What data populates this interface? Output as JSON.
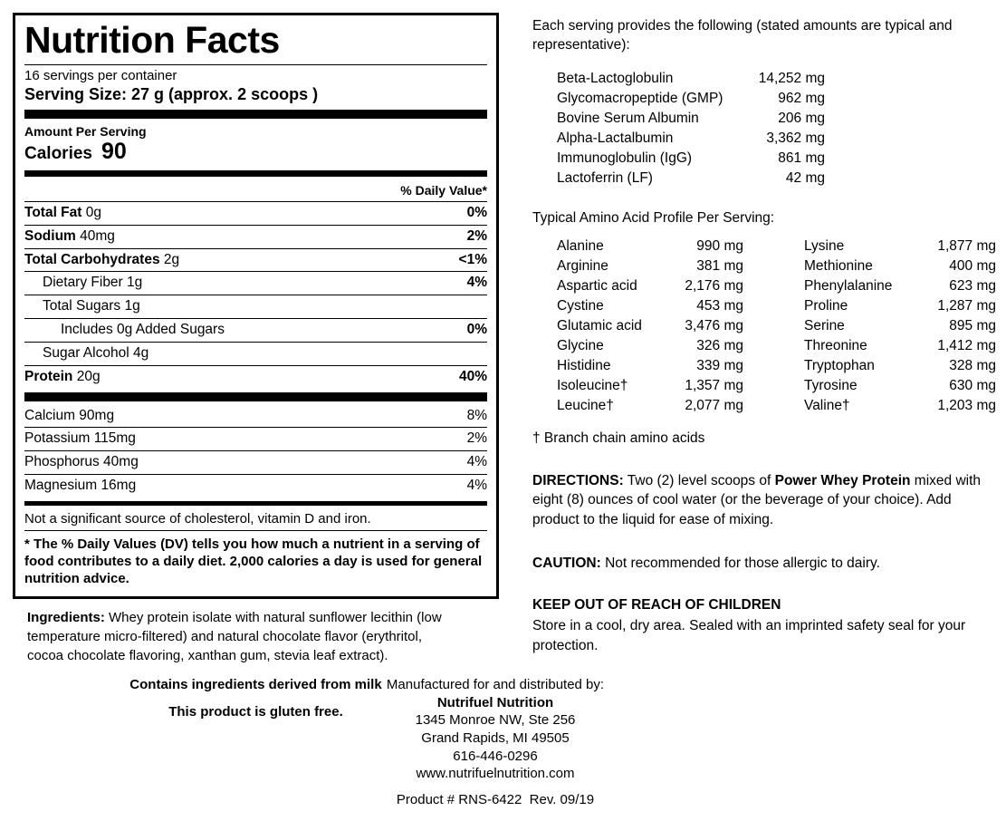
{
  "nutrition_panel": {
    "title": "Nutrition Facts",
    "servings_per_container": "16 servings per container",
    "serving_size": "Serving Size: 27 g (approx. 2 scoops )",
    "amount_per_serving": "Amount Per Serving",
    "calories_label": "Calories",
    "calories_value": "90",
    "daily_value_header": "% Daily Value*",
    "rows": [
      {
        "name": "Total Fat",
        "amount": "0g",
        "dv": "0%"
      },
      {
        "name": "Sodium",
        "amount": "40mg",
        "dv": "2%"
      },
      {
        "name": "Total Carbohydrates",
        "amount": "2g",
        "dv": "<1%"
      },
      {
        "name": "Dietary Fiber",
        "amount": "1g",
        "dv": "4%"
      },
      {
        "name": "Total Sugars",
        "amount": "1g",
        "dv": ""
      },
      {
        "name": "Includes 0g Added Sugars",
        "amount": "",
        "dv": "0%"
      },
      {
        "name": "Sugar Alcohol",
        "amount": "4g",
        "dv": ""
      },
      {
        "name": "Protein",
        "amount": "20g",
        "dv": "40%"
      },
      {
        "name": "Calcium",
        "amount": "90mg",
        "dv": "8%"
      },
      {
        "name": "Potassium",
        "amount": "115mg",
        "dv": "2%"
      },
      {
        "name": "Phosphorus",
        "amount": "40mg",
        "dv": "4%"
      },
      {
        "name": "Magnesium",
        "amount": "16mg",
        "dv": "4%"
      }
    ],
    "not_significant": "Not a significant source of cholesterol, vitamin D and iron.",
    "footnote": "* The % Daily Values (DV) tells you how much a nutrient in a serving of food contributes to a daily diet. 2,000 calories a day is used for general nutrition advice."
  },
  "ingredients": {
    "label": "Ingredients:",
    "text": " Whey protein isolate with natural sunflower lecithin (low temperature micro-filtered) and natural chocolate flavor (erythritol, cocoa chocolate flavoring, xanthan gum, stevia leaf extract).",
    "milk_note": "Contains ingredients derived from milk",
    "gluten_note": "This product is gluten free."
  },
  "serving_provides": {
    "intro": "Each serving provides the following (stated amounts are typical and representative):",
    "items": [
      {
        "name": "Beta-Lactoglobulin",
        "value": "14,252 mg"
      },
      {
        "name": "Glycomacropeptide (GMP)",
        "value": "962 mg"
      },
      {
        "name": "Bovine Serum Albumin",
        "value": "206 mg"
      },
      {
        "name": "Alpha-Lactalbumin",
        "value": "3,362 mg"
      },
      {
        "name": "Immunoglobulin (IgG)",
        "value": "861 mg"
      },
      {
        "name": "Lactoferrin (LF)",
        "value": "42 mg"
      }
    ]
  },
  "amino_profile": {
    "title": "Typical Amino Acid Profile Per Serving:",
    "left": [
      {
        "name": "Alanine",
        "value": "990 mg"
      },
      {
        "name": "Arginine",
        "value": "381 mg"
      },
      {
        "name": "Aspartic acid",
        "value": "2,176 mg"
      },
      {
        "name": "Cystine",
        "value": "453 mg"
      },
      {
        "name": "Glutamic acid",
        "value": "3,476 mg"
      },
      {
        "name": "Glycine",
        "value": "326 mg"
      },
      {
        "name": "Histidine",
        "value": "339 mg"
      },
      {
        "name": "Isoleucine†",
        "value": "1,357 mg"
      },
      {
        "name": "Leucine†",
        "value": "2,077 mg"
      }
    ],
    "right": [
      {
        "name": "Lysine",
        "value": "1,877 mg"
      },
      {
        "name": "Methionine",
        "value": "400 mg"
      },
      {
        "name": "Phenylalanine",
        "value": "623 mg"
      },
      {
        "name": "Proline",
        "value": "1,287 mg"
      },
      {
        "name": "Serine",
        "value": "895 mg"
      },
      {
        "name": "Threonine",
        "value": "1,412 mg"
      },
      {
        "name": "Tryptophan",
        "value": "328 mg"
      },
      {
        "name": "Tyrosine",
        "value": "630 mg"
      },
      {
        "name": "Valine†",
        "value": "1,203 mg"
      }
    ],
    "footnote": "† Branch chain amino acids"
  },
  "directions": {
    "label": "DIRECTIONS:",
    "part1": " Two (2) level scoops of ",
    "bold": "Power Whey Protein",
    "part2": " mixed with eight (8) ounces of cool water (or the beverage of your choice). Add product to the liquid for ease of mixing."
  },
  "caution": {
    "label": "CAUTION:",
    "text": " Not recommended for those allergic to dairy."
  },
  "keep_out": {
    "title": "KEEP OUT OF REACH OF CHILDREN",
    "text": "Store in a cool, dry area. Sealed with an imprinted safety seal for your protection."
  },
  "distributor": {
    "intro": "Manufactured for and distributed by:",
    "name": "Nutrifuel Nutrition",
    "address1": "1345 Monroe NW, Ste 256",
    "address2": "Grand Rapids, MI 49505",
    "phone": "616-446-0296",
    "website": "www.nutrifuelnutrition.com",
    "product_line": "Product # RNS-6422  Rev. 09/19"
  }
}
